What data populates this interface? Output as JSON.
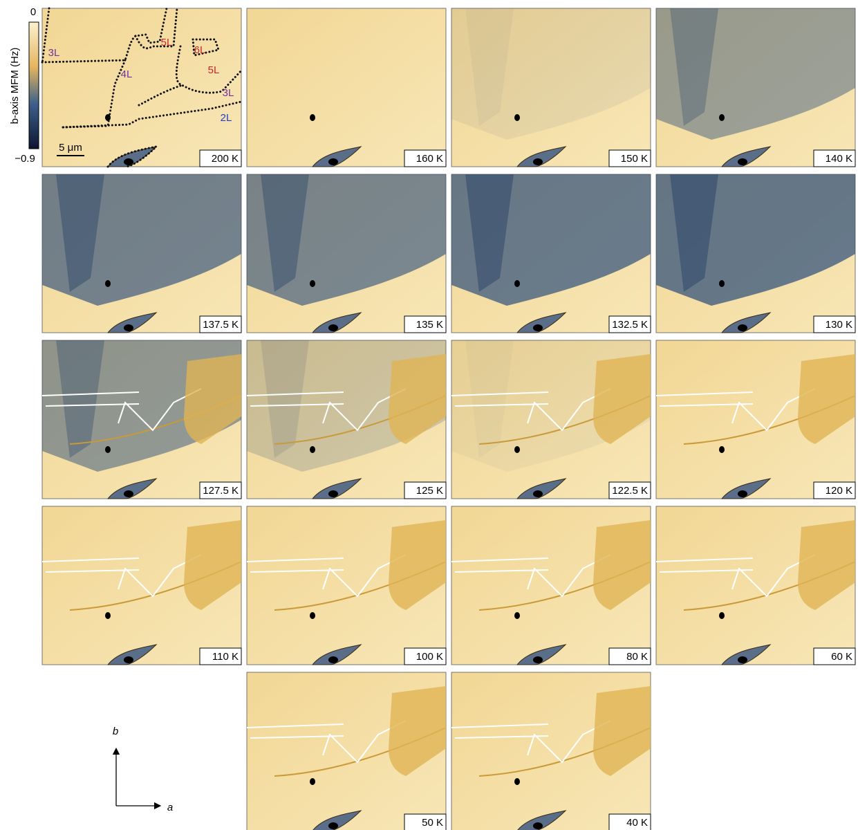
{
  "colorbar": {
    "label": "b-axis MFM (Hz)",
    "ticks": [
      "0",
      "−0.9"
    ]
  },
  "scale_bar": "5 μm",
  "layers": [
    "3L",
    "5L",
    "6L",
    "4L",
    "5L",
    "3L",
    "2L"
  ],
  "panels": [
    "200 K",
    "160 K",
    "150 K",
    "140 K",
    "137.5 K",
    "135 K",
    "132.5 K",
    "130 K",
    "127.5 K",
    "125 K",
    "122.5 K",
    "120 K",
    "110 K",
    "100 K",
    "80 K",
    "60 K",
    "50 K",
    "40 K"
  ],
  "axes": {
    "vertical": "b",
    "horizontal": "a"
  }
}
